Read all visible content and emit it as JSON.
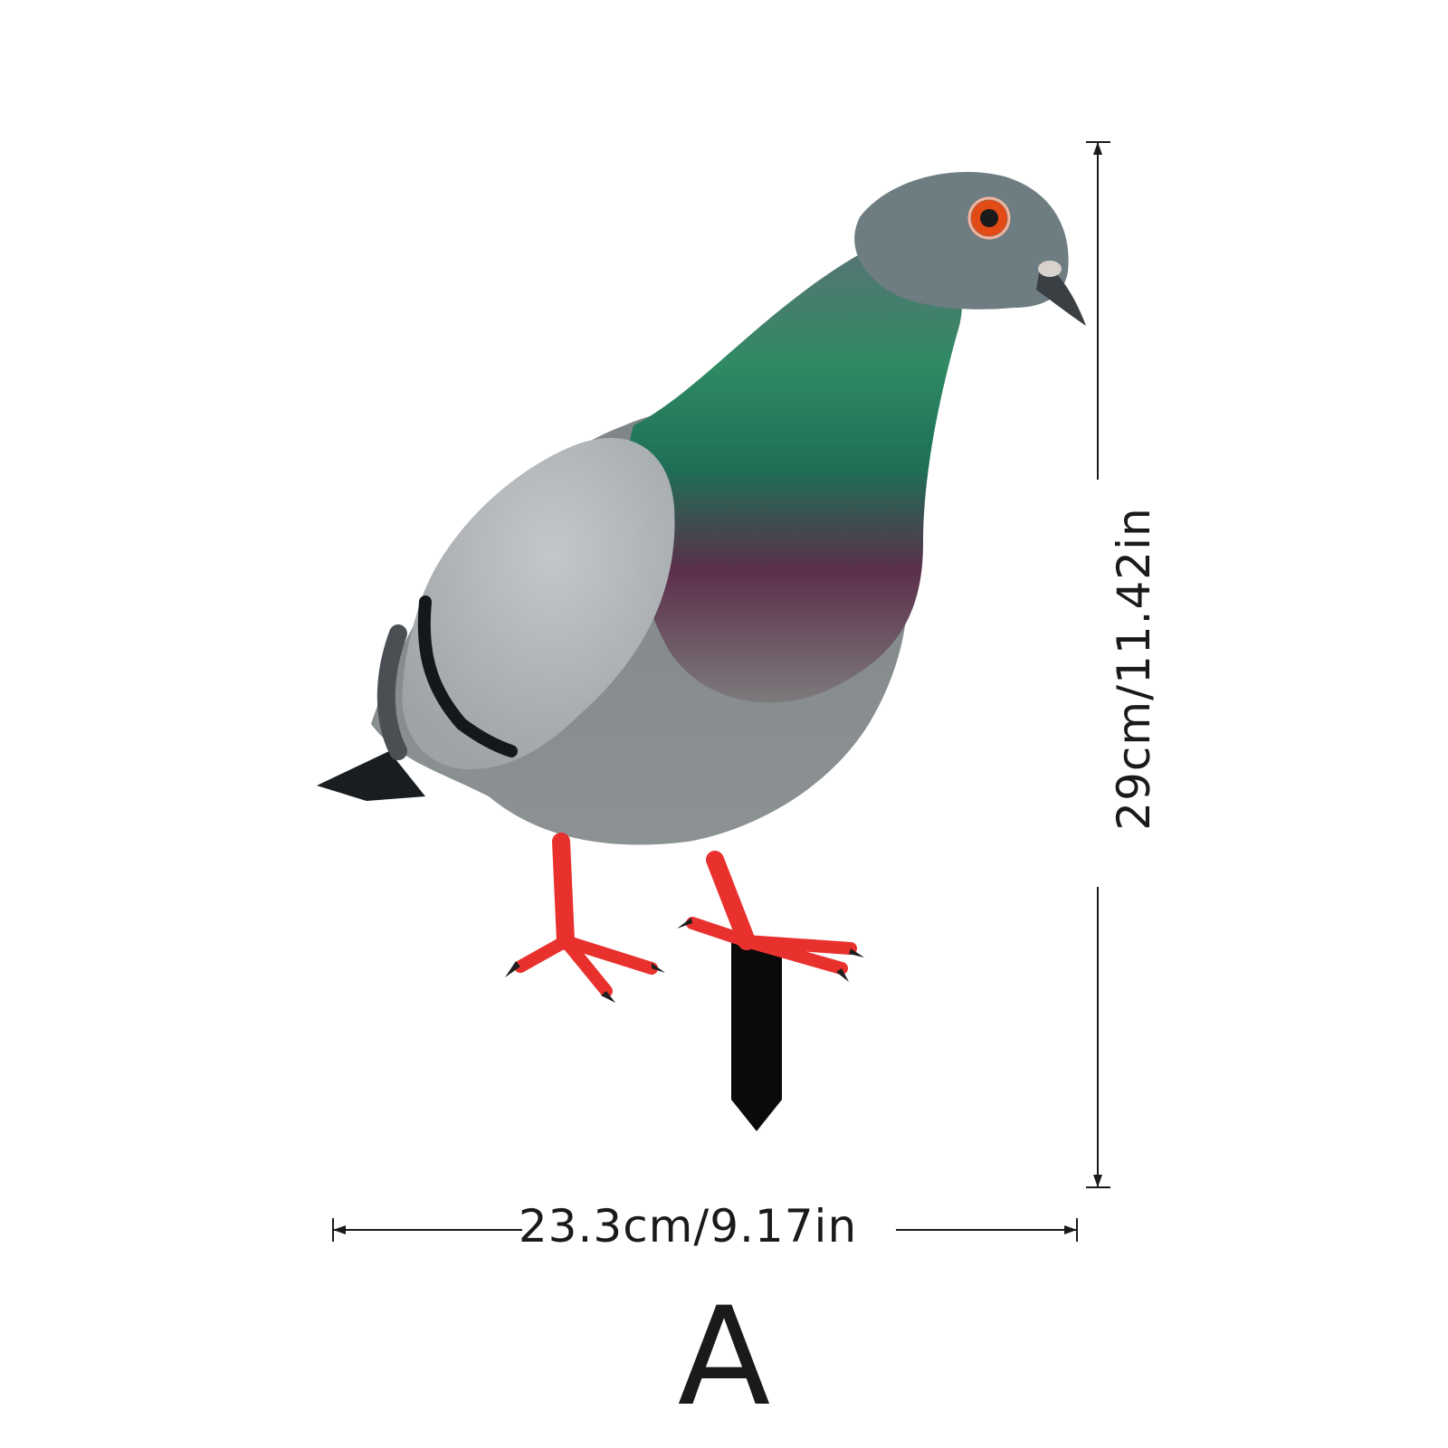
{
  "product": {
    "variant_label": "A",
    "subject_icon": "pigeon-stake-icon"
  },
  "dimensions": {
    "width_label": "23.3cm/9.17in",
    "height_label": "29cm/11.42in"
  },
  "colors": {
    "background": "#ffffff",
    "line": "#1a1a1a",
    "feet": "#e8302d",
    "eye": "#e24a16",
    "neck_green": "#1f8a5a",
    "breast_purple": "#5a2f4a"
  }
}
